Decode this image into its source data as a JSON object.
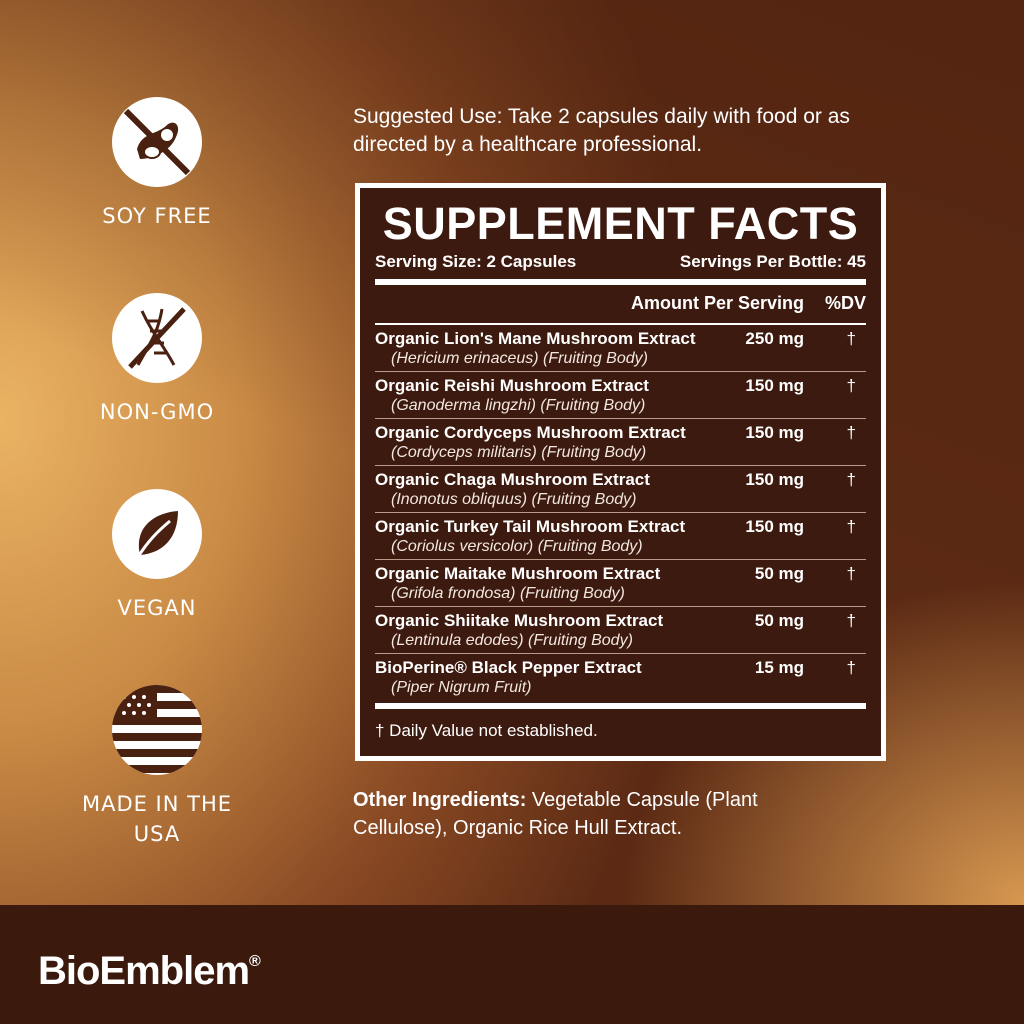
{
  "badges": [
    {
      "label": "SOY FREE",
      "icon": "soy-free-icon"
    },
    {
      "label": "NON-GMO",
      "icon": "non-gmo-icon"
    },
    {
      "label": "VEGAN",
      "icon": "vegan-leaf-icon"
    },
    {
      "label": "MADE IN THE USA",
      "icon": "usa-flag-icon"
    }
  ],
  "suggested_use": "Suggested Use: Take 2 capsules daily with food or as directed by a healthcare professional.",
  "facts": {
    "title": "SUPPLEMENT FACTS",
    "serving_size": "Serving Size: 2 Capsules",
    "servings_per": "Servings Per Bottle: 45",
    "amount_header": "Amount Per Serving",
    "dv_header": "%DV",
    "rows": [
      {
        "name": "Organic Lion's Mane Mushroom Extract",
        "sci": "(Hericium erinaceus) (Fruiting Body)",
        "amount": "250 mg",
        "dv": "†"
      },
      {
        "name": "Organic Reishi Mushroom Extract",
        "sci": "(Ganoderma lingzhi) (Fruiting Body)",
        "amount": "150 mg",
        "dv": "†"
      },
      {
        "name": "Organic Cordyceps Mushroom Extract",
        "sci": "(Cordyceps militaris) (Fruiting Body)",
        "amount": "150 mg",
        "dv": "†"
      },
      {
        "name": "Organic Chaga Mushroom Extract",
        "sci": "(Inonotus obliquus) (Fruiting Body)",
        "amount": "150 mg",
        "dv": "†"
      },
      {
        "name": "Organic Turkey Tail Mushroom Extract",
        "sci": "(Coriolus versicolor) (Fruiting Body)",
        "amount": "150 mg",
        "dv": "†"
      },
      {
        "name": "Organic Maitake Mushroom Extract",
        "sci": "(Grifola frondosa) (Fruiting Body)",
        "amount": "50 mg",
        "dv": "†"
      },
      {
        "name": "Organic Shiitake Mushroom Extract",
        "sci": "(Lentinula edodes) (Fruiting Body)",
        "amount": "50 mg",
        "dv": "†"
      },
      {
        "name": "BioPerine® Black Pepper Extract",
        "sci": "(Piper Nigrum Fruit)",
        "amount": "15 mg",
        "dv": "†"
      }
    ],
    "footnote": "† Daily Value not established."
  },
  "other": {
    "label": "Other Ingredients:",
    "text": " Vegetable Capsule (Plant Cellulose), Organic Rice Hull Extract."
  },
  "brand": {
    "name": "BioEmblem",
    "mark": "®"
  },
  "colors": {
    "panel": "#3d1a0f",
    "footer": "#3b1a0d",
    "icon": "#4a2010"
  }
}
